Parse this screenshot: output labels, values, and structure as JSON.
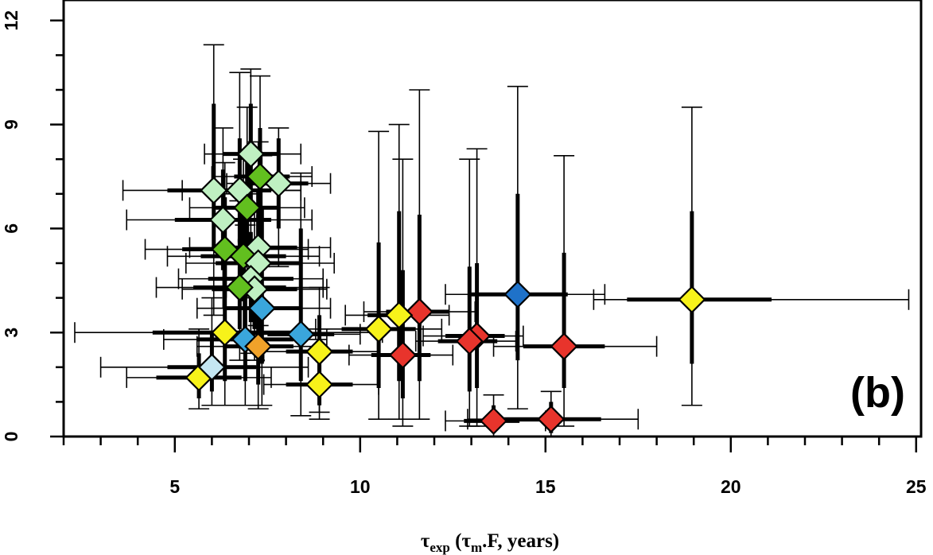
{
  "chart_data": {
    "type": "scatter",
    "title": "",
    "panel_label": "(b)",
    "xlabel": {
      "tau": "τ",
      "exp": "exp",
      "open": " (",
      "tau_m": "τ",
      "m": "m",
      "rest": ".F, years)"
    },
    "ylabel": "",
    "xlim": [
      2.0,
      25.0
    ],
    "ylim": [
      0,
      12.6
    ],
    "x_ticks": [
      5,
      10,
      15,
      20,
      25
    ],
    "x_minor_step": 1,
    "y_ticks": [
      0,
      3,
      6,
      9,
      12
    ],
    "y_minor_step": 1,
    "grid": false,
    "legend": "none",
    "colors": {
      "red": "#e8342c",
      "yellow": "#f7f21a",
      "blue": "#1f72c9",
      "lightblue": "#3aa6dc",
      "paleblue": "#c4e6f2",
      "orange": "#f0a22a",
      "green": "#62bf1f",
      "palegreen": "#bff0c2"
    },
    "points": [
      {
        "x": 18.95,
        "y": 3.95,
        "c": "yellow",
        "xt": [
          17.2,
          21.1
        ],
        "xw": [
          16.3,
          24.8
        ],
        "yt": [
          2.1,
          6.5
        ],
        "yw": [
          0.9,
          9.5
        ]
      },
      {
        "x": 14.25,
        "y": 4.1,
        "c": "blue",
        "xt": [
          12.9,
          15.6
        ],
        "xw": [
          12.3,
          16.6
        ],
        "yt": [
          2.2,
          7.0
        ],
        "yw": [
          0.8,
          10.1
        ]
      },
      {
        "x": 15.5,
        "y": 2.6,
        "c": "red",
        "xt": [
          14.4,
          16.6
        ],
        "xw": [
          13.6,
          18.0
        ],
        "yt": [
          1.4,
          5.3
        ],
        "yw": [
          0.3,
          8.1
        ]
      },
      {
        "x": 15.15,
        "y": 0.5,
        "c": "red",
        "xt": [
          13.5,
          16.5
        ],
        "xw": [
          12.9,
          17.5
        ],
        "yt": [
          0.1,
          1.0
        ],
        "yw": [
          0.0,
          1.3
        ]
      },
      {
        "x": 13.6,
        "y": 0.45,
        "c": "red",
        "xt": [
          12.8,
          14.3
        ],
        "xw": [
          12.3,
          15.0
        ],
        "yt": [
          0.1,
          0.9
        ],
        "yw": [
          0.0,
          1.2
        ]
      },
      {
        "x": 13.15,
        "y": 2.9,
        "c": "red",
        "xt": [
          12.3,
          13.9
        ],
        "xw": [
          11.7,
          14.4
        ],
        "yt": [
          1.4,
          5.0
        ],
        "yw": [
          0.3,
          8.3
        ]
      },
      {
        "x": 12.95,
        "y": 2.75,
        "c": "red",
        "xt": [
          12.1,
          13.7
        ],
        "xw": [
          11.5,
          14.2
        ],
        "yt": [
          1.3,
          4.9
        ],
        "yw": [
          0.3,
          8.0
        ]
      },
      {
        "x": 11.6,
        "y": 3.6,
        "c": "red",
        "xt": [
          10.7,
          12.4
        ],
        "xw": [
          10.1,
          13.1
        ],
        "yt": [
          1.6,
          6.4
        ],
        "yw": [
          0.5,
          10.0
        ]
      },
      {
        "x": 11.15,
        "y": 2.35,
        "c": "red",
        "xt": [
          10.3,
          11.9
        ],
        "xw": [
          9.7,
          12.5
        ],
        "yt": [
          1.1,
          4.8
        ],
        "yw": [
          0.3,
          8.0
        ]
      },
      {
        "x": 11.05,
        "y": 3.5,
        "c": "yellow",
        "xt": [
          10.2,
          11.8
        ],
        "xw": [
          9.6,
          12.4
        ],
        "yt": [
          1.6,
          6.5
        ],
        "yw": [
          0.5,
          9.0
        ]
      },
      {
        "x": 10.5,
        "y": 3.1,
        "c": "yellow",
        "xt": [
          9.5,
          11.5
        ],
        "xw": [
          8.8,
          12.2
        ],
        "yt": [
          1.4,
          5.6
        ],
        "yw": [
          0.5,
          8.8
        ]
      },
      {
        "x": 8.9,
        "y": 1.5,
        "c": "yellow",
        "xt": [
          8.0,
          9.8
        ],
        "xw": [
          7.4,
          10.5
        ],
        "yt": [
          0.9,
          2.4
        ],
        "yw": [
          0.5,
          3.1
        ]
      },
      {
        "x": 8.9,
        "y": 2.45,
        "c": "yellow",
        "xt": [
          8.0,
          9.8
        ],
        "xw": [
          7.4,
          10.5
        ],
        "yt": [
          1.4,
          3.5
        ],
        "yw": [
          0.7,
          4.3
        ]
      },
      {
        "x": 8.4,
        "y": 2.95,
        "c": "lightblue",
        "xt": [
          7.5,
          9.3
        ],
        "xw": [
          6.9,
          10.0
        ],
        "yt": [
          1.6,
          6.0
        ],
        "yw": [
          0.6,
          7.6
        ]
      },
      {
        "x": 7.35,
        "y": 3.7,
        "c": "lightblue",
        "xt": [
          6.3,
          8.4
        ],
        "xw": [
          5.6,
          9.2
        ],
        "yt": [
          2.1,
          6.6
        ],
        "yw": [
          0.9,
          8.1
        ]
      },
      {
        "x": 6.9,
        "y": 2.8,
        "c": "lightblue",
        "xt": [
          5.6,
          8.2
        ],
        "xw": [
          4.7,
          9.1
        ],
        "yt": [
          1.6,
          4.6
        ],
        "yw": [
          0.9,
          6.1
        ]
      },
      {
        "x": 7.25,
        "y": 2.6,
        "c": "orange",
        "xt": [
          6.3,
          8.2
        ],
        "xw": [
          5.6,
          8.9
        ],
        "yt": [
          1.5,
          4.2
        ],
        "yw": [
          0.8,
          5.4
        ]
      },
      {
        "x": 6.35,
        "y": 3.0,
        "c": "yellow",
        "xt": [
          4.4,
          8.6
        ],
        "xw": [
          2.3,
          10.6
        ],
        "yt": [
          1.6,
          5.4
        ],
        "yw": [
          0.9,
          7.0
        ]
      },
      {
        "x": 5.65,
        "y": 1.7,
        "c": "yellow",
        "xt": [
          4.5,
          6.8
        ],
        "xw": [
          3.7,
          7.6
        ],
        "yt": [
          1.1,
          2.4
        ],
        "yw": [
          0.8,
          3.1
        ]
      },
      {
        "x": 6.0,
        "y": 2.0,
        "c": "paleblue",
        "xt": [
          4.8,
          7.2
        ],
        "xw": [
          3.0,
          8.6
        ],
        "yt": [
          1.3,
          3.0
        ],
        "yw": [
          0.9,
          4.0
        ]
      },
      {
        "x": 7.05,
        "y": 8.15,
        "c": "palegreen",
        "xt": [
          6.3,
          7.8
        ],
        "xw": [
          5.8,
          8.4
        ],
        "yt": [
          6.6,
          9.6
        ],
        "yw": [
          5.2,
          10.6
        ]
      },
      {
        "x": 7.3,
        "y": 7.5,
        "c": "green",
        "xt": [
          6.6,
          8.1
        ],
        "xw": [
          6.0,
          8.7
        ],
        "yt": [
          6.1,
          8.9
        ],
        "yw": [
          4.9,
          10.4
        ]
      },
      {
        "x": 7.8,
        "y": 7.3,
        "c": "palegreen",
        "xt": [
          7.0,
          8.6
        ],
        "xw": [
          6.4,
          9.2
        ],
        "yt": [
          6.0,
          8.6
        ],
        "yw": [
          4.9,
          8.9
        ]
      },
      {
        "x": 6.05,
        "y": 7.1,
        "c": "palegreen",
        "xt": [
          4.8,
          7.3
        ],
        "xw": [
          3.6,
          8.4
        ],
        "yt": [
          5.4,
          9.6
        ],
        "yw": [
          3.5,
          11.3
        ]
      },
      {
        "x": 6.75,
        "y": 7.1,
        "c": "palegreen",
        "xt": [
          5.9,
          7.6
        ],
        "xw": [
          5.2,
          8.4
        ],
        "yt": [
          5.6,
          8.6
        ],
        "yw": [
          4.4,
          10.5
        ]
      },
      {
        "x": 6.95,
        "y": 6.6,
        "c": "green",
        "xt": [
          6.1,
          7.8
        ],
        "xw": [
          5.4,
          8.5
        ],
        "yt": [
          5.2,
          8.0
        ],
        "yw": [
          4.0,
          9.5
        ]
      },
      {
        "x": 6.3,
        "y": 6.25,
        "c": "palegreen",
        "xt": [
          5.0,
          7.6
        ],
        "xw": [
          3.7,
          8.7
        ],
        "yt": [
          4.8,
          7.7
        ],
        "yw": [
          3.7,
          8.9
        ]
      },
      {
        "x": 7.25,
        "y": 5.45,
        "c": "palegreen",
        "xt": [
          6.2,
          8.3
        ],
        "xw": [
          5.4,
          9.2
        ],
        "yt": [
          4.2,
          7.1
        ],
        "yw": [
          3.2,
          8.5
        ]
      },
      {
        "x": 6.35,
        "y": 5.4,
        "c": "green",
        "xt": [
          5.2,
          7.5
        ],
        "xw": [
          4.2,
          8.6
        ],
        "yt": [
          4.0,
          6.9
        ],
        "yw": [
          3.0,
          7.9
        ]
      },
      {
        "x": 6.85,
        "y": 5.2,
        "c": "green",
        "xt": [
          5.7,
          8.0
        ],
        "xw": [
          4.8,
          8.9
        ],
        "yt": [
          3.9,
          6.6
        ],
        "yw": [
          2.8,
          8.0
        ]
      },
      {
        "x": 7.25,
        "y": 5.0,
        "c": "palegreen",
        "xt": [
          6.1,
          8.4
        ],
        "xw": [
          5.3,
          9.3
        ],
        "yt": [
          3.7,
          6.4
        ],
        "yw": [
          2.7,
          7.5
        ]
      },
      {
        "x": 7.05,
        "y": 4.55,
        "c": "palegreen",
        "xt": [
          5.9,
          8.2
        ],
        "xw": [
          5.1,
          9.0
        ],
        "yt": [
          3.3,
          5.9
        ],
        "yw": [
          2.4,
          7.0
        ]
      },
      {
        "x": 7.15,
        "y": 4.25,
        "c": "palegreen",
        "xt": [
          6.0,
          8.3
        ],
        "xw": [
          5.2,
          9.1
        ],
        "yt": [
          3.1,
          5.6
        ],
        "yw": [
          2.2,
          6.6
        ]
      },
      {
        "x": 6.75,
        "y": 4.3,
        "c": "green",
        "xt": [
          5.5,
          8.0
        ],
        "xw": [
          4.5,
          9.0
        ],
        "yt": [
          3.1,
          5.7
        ],
        "yw": [
          2.2,
          6.8
        ]
      }
    ]
  }
}
